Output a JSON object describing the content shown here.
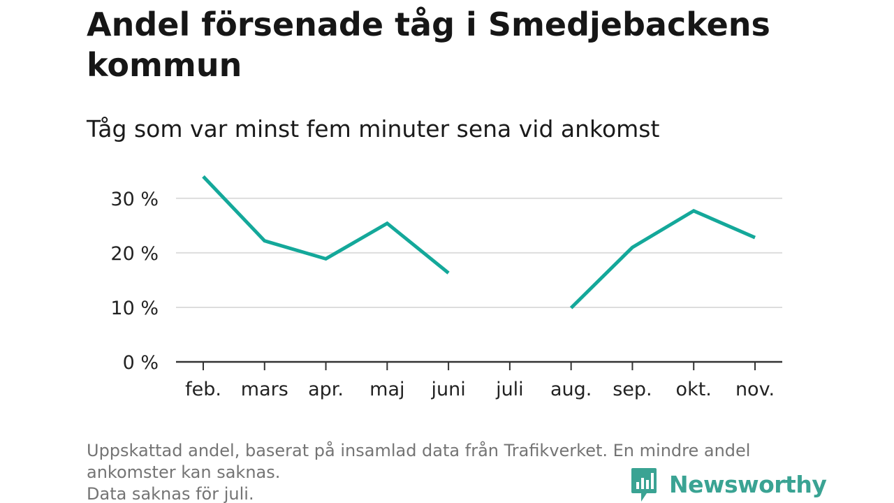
{
  "header": {
    "title": "Andel försenade tåg i Smedjebackens kommun",
    "subtitle": "Tåg som var minst fem minuter sena vid ankomst"
  },
  "footer": {
    "note_line1": "Uppskattad andel, baserat på insamlad data från Trafikverket. En mindre andel",
    "note_line2": "ankomster kan saknas.",
    "note_line3": "Data saknas för juli.",
    "brand": "Newsworthy"
  },
  "colors": {
    "line": "#14a89a",
    "grid": "#dddddd",
    "axis": "#333333",
    "brand": "#3aa393"
  },
  "chart_data": {
    "type": "line",
    "categories": [
      "feb.",
      "mars",
      "apr.",
      "maj",
      "juni",
      "juli",
      "aug.",
      "sep.",
      "okt.",
      "nov."
    ],
    "series": [
      {
        "values": [
          34.0,
          22.2,
          18.9,
          25.4,
          16.3,
          null,
          9.9,
          21.0,
          27.7,
          22.8
        ]
      }
    ],
    "ylim": [
      0,
      36
    ],
    "yticks": [
      0,
      10,
      20,
      30
    ],
    "ytick_labels": [
      "0 %",
      "10 %",
      "20 %",
      "30 %"
    ],
    "grid": true,
    "legend": "none",
    "xlabel": "",
    "ylabel": ""
  }
}
